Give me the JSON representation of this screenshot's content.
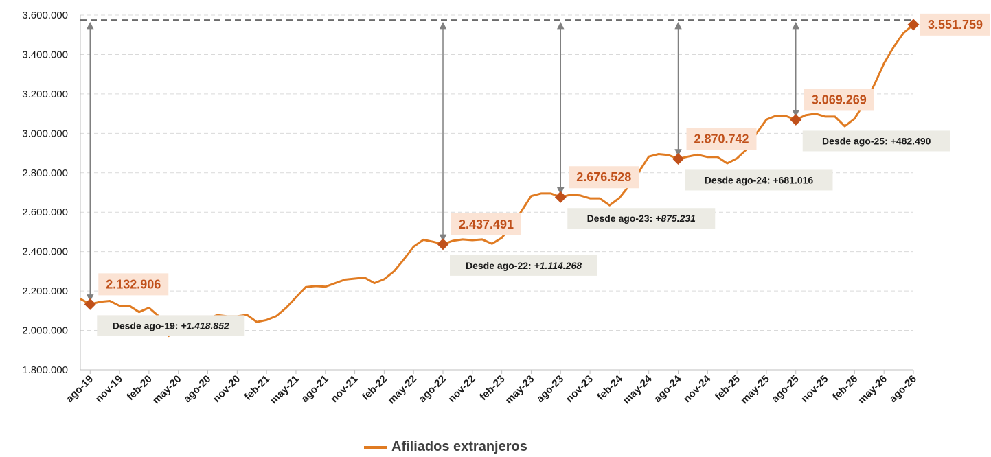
{
  "chart_data": {
    "type": "line",
    "title": "",
    "xlabel": "",
    "ylabel": "",
    "ylim": [
      1800000,
      3600000
    ],
    "yticks": [
      "1.800.000",
      "2.000.000",
      "2.200.000",
      "2.400.000",
      "2.600.000",
      "2.800.000",
      "3.000.000",
      "3.200.000",
      "3.400.000",
      "3.600.000"
    ],
    "ytick_values": [
      1800000,
      2000000,
      2200000,
      2400000,
      2600000,
      2800000,
      3000000,
      3200000,
      3400000,
      3600000
    ],
    "xticks": [
      "ago-19",
      "nov-19",
      "feb-20",
      "may-20",
      "ago-20",
      "nov-20",
      "feb-21",
      "may-21",
      "ago-21",
      "nov-21",
      "feb-22",
      "may-22",
      "ago-22",
      "nov-22",
      "feb-23",
      "may-23",
      "ago-23",
      "nov-23",
      "feb-24",
      "may-24",
      "ago-24",
      "nov-24",
      "feb-25",
      "may-25",
      "ago-25",
      "nov-25",
      "feb-26",
      "may-26",
      "ago-26"
    ],
    "grid": "horizontal",
    "legend_position": "bottom",
    "series": [
      {
        "name": "Afiliados extranjeros",
        "color": "#e07b22",
        "x": [
          "jul-19",
          "ago-19",
          "sep-19",
          "oct-19",
          "nov-19",
          "dic-19",
          "ene-20",
          "feb-20",
          "mar-20",
          "abr-20",
          "may-20",
          "jun-20",
          "jul-20",
          "ago-20",
          "sep-20",
          "oct-20",
          "nov-20",
          "dic-20",
          "ene-21",
          "feb-21",
          "mar-21",
          "abr-21",
          "may-21",
          "jun-21",
          "jul-21",
          "ago-21",
          "sep-21",
          "oct-21",
          "nov-21",
          "dic-21",
          "ene-22",
          "feb-22",
          "mar-22",
          "abr-22",
          "may-22",
          "jun-22",
          "jul-22",
          "ago-22",
          "sep-22",
          "oct-22",
          "nov-22",
          "dic-22",
          "ene-23",
          "feb-23",
          "mar-23",
          "abr-23",
          "may-23",
          "jun-23",
          "jul-23",
          "ago-23",
          "sep-23",
          "oct-23",
          "nov-23",
          "dic-23",
          "ene-24",
          "feb-24",
          "mar-24",
          "abr-24",
          "may-24",
          "jun-24",
          "jul-24",
          "ago-24",
          "sep-24",
          "oct-24",
          "nov-24",
          "dic-24",
          "ene-25",
          "feb-25",
          "mar-25",
          "abr-25",
          "may-25",
          "jun-25",
          "jul-25",
          "ago-25",
          "sep-25",
          "oct-25",
          "nov-25",
          "dic-25",
          "ene-26",
          "feb-26",
          "mar-26",
          "abr-26",
          "may-26",
          "jun-26",
          "jul-26",
          "ago-26"
        ],
        "values": [
          2160000,
          2132906,
          2145000,
          2150000,
          2125000,
          2125000,
          2093000,
          2115000,
          2072000,
          1972000,
          2010000,
          2028000,
          2047000,
          2062000,
          2078000,
          2072000,
          2072000,
          2079000,
          2043000,
          2053000,
          2073000,
          2115000,
          2168000,
          2220000,
          2225000,
          2222000,
          2240000,
          2258000,
          2263000,
          2268000,
          2240000,
          2260000,
          2300000,
          2360000,
          2425000,
          2460000,
          2450000,
          2437491,
          2455000,
          2462000,
          2458000,
          2462000,
          2440000,
          2470000,
          2530000,
          2605000,
          2682000,
          2695000,
          2695000,
          2676528,
          2688000,
          2685000,
          2670000,
          2670000,
          2635000,
          2672000,
          2735000,
          2805000,
          2882000,
          2895000,
          2890000,
          2870742,
          2882000,
          2892000,
          2880000,
          2880000,
          2848000,
          2873000,
          2920000,
          3000000,
          3070000,
          3090000,
          3088000,
          3069269,
          3092000,
          3100000,
          3085000,
          3085000,
          3036000,
          3075000,
          3155000,
          3245000,
          3355000,
          3440000,
          3510000,
          3551759
        ]
      }
    ],
    "annotations": [
      {
        "x": "ago-19",
        "value": 2132906,
        "label": "2.132.906",
        "since": "Desde ago-19: ",
        "diff": "+1.418.852",
        "diff_italic": true
      },
      {
        "x": "ago-22",
        "value": 2437491,
        "label": "2.437.491",
        "since": "Desde ago-22: ",
        "diff": "+1.114.268",
        "diff_italic": true
      },
      {
        "x": "ago-23",
        "value": 2676528,
        "label": "2.676.528",
        "since": "Desde ago-23: ",
        "diff": "+875.231",
        "diff_italic": true
      },
      {
        "x": "ago-24",
        "value": 2870742,
        "label": "2.870.742",
        "since": "Desde ago-24: ",
        "diff": "+681.016",
        "diff_italic": false
      },
      {
        "x": "ago-25",
        "value": 3069269,
        "label": "3.069.269",
        "since": "Desde ago-25: ",
        "diff": "+482.490",
        "diff_italic": false
      },
      {
        "x": "ago-26",
        "value": 3551759,
        "label": "3.551.759"
      }
    ],
    "reference_line": {
      "value": 3575000,
      "style": "dashed",
      "color": "#6b6b6b"
    },
    "colors": {
      "line": "#e07b22",
      "marker": "#c0501a",
      "label_bg": "#fbe3d4",
      "label_text": "#c0501a",
      "box_bg": "#ecebe4",
      "arrow": "#808080"
    }
  },
  "legend": {
    "label": "Afiliados extranjeros"
  }
}
